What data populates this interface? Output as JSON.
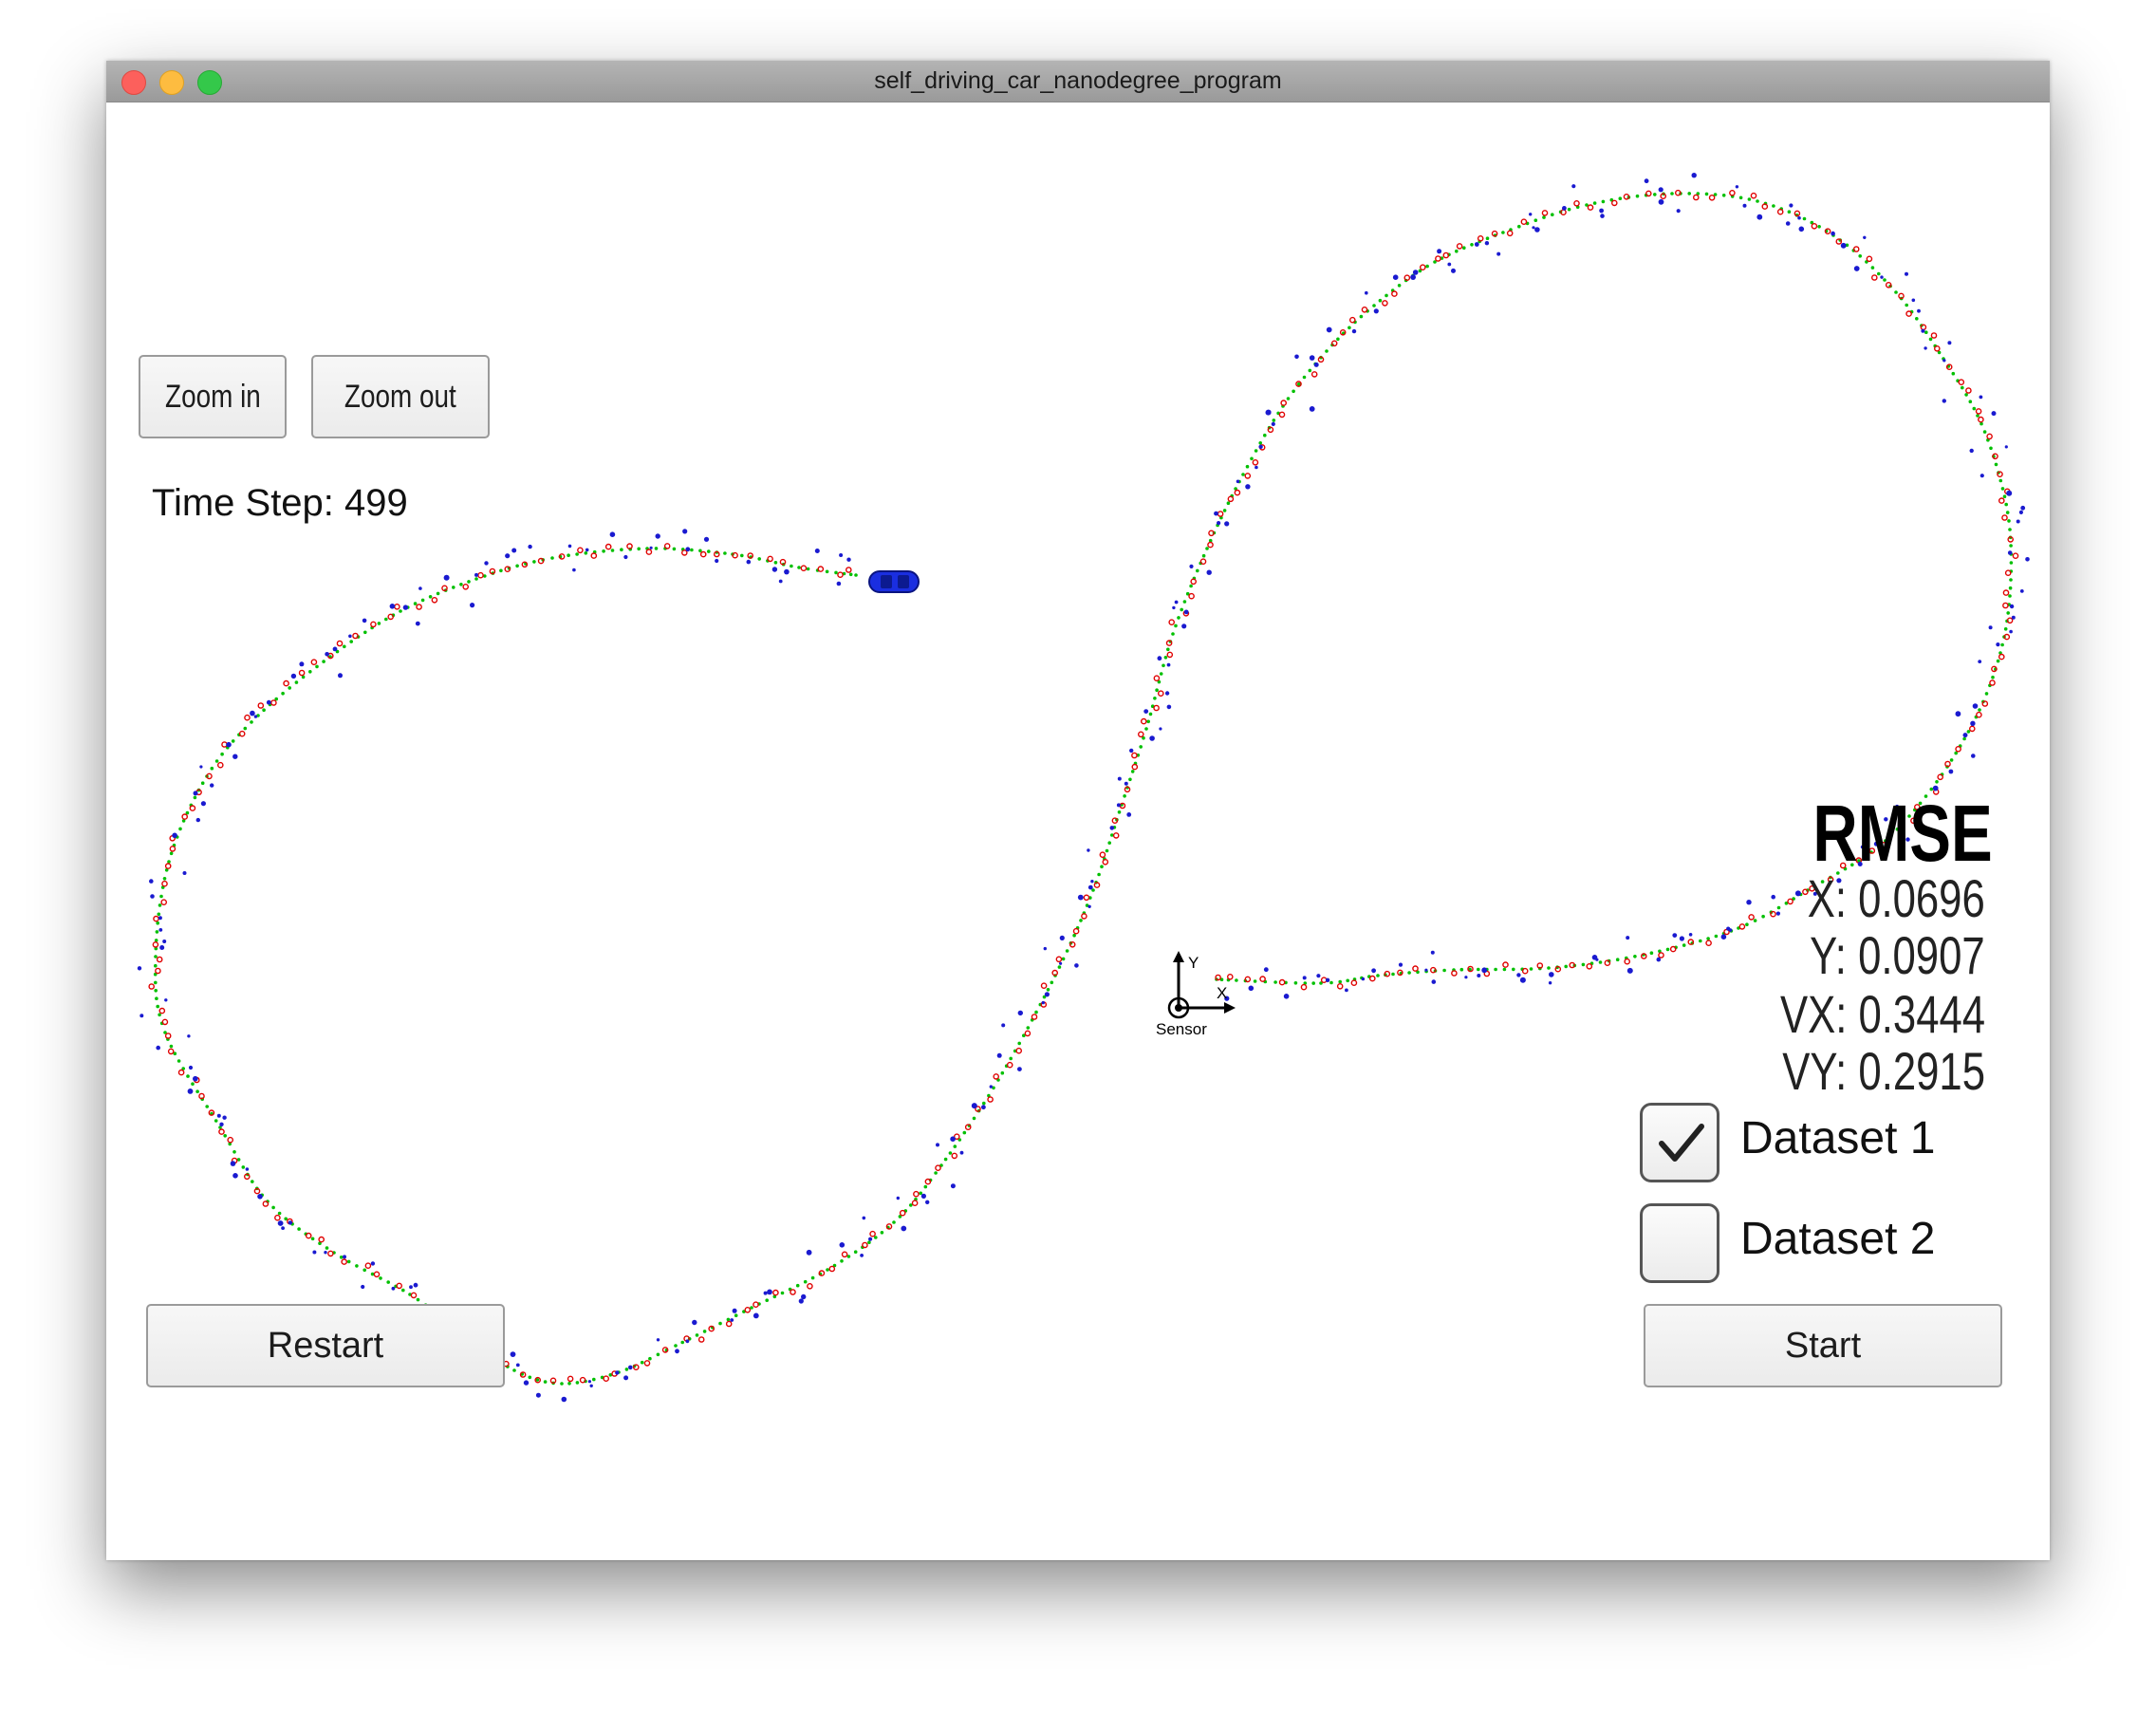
{
  "window": {
    "title": "self_driving_car_nanodegree_program"
  },
  "toolbar": {
    "zoom_in": "Zoom in",
    "zoom_out": "Zoom out"
  },
  "status": {
    "time_step": "Time Step: 499"
  },
  "rmse": {
    "title": "RMSE",
    "x": "X: 0.0696",
    "y": "Y: 0.0907",
    "vx": "VX: 0.3444",
    "vy": "VY: 0.2915"
  },
  "datasets": [
    {
      "label": "Dataset 1",
      "checked": true
    },
    {
      "label": "Dataset 2",
      "checked": false
    }
  ],
  "buttons": {
    "restart": "Restart",
    "start": "Start"
  },
  "sensor": {
    "label": "Sensor",
    "axis_x": "X",
    "axis_y": "Y"
  },
  "colors": {
    "ground_truth": "#00c000",
    "lidar": "#e00000",
    "radar": "#1a1ad0",
    "car": "#1a2ee0"
  },
  "icons": {
    "car": "car-icon",
    "sensor": "sensor-axes-icon",
    "check": "checkmark-icon"
  }
}
